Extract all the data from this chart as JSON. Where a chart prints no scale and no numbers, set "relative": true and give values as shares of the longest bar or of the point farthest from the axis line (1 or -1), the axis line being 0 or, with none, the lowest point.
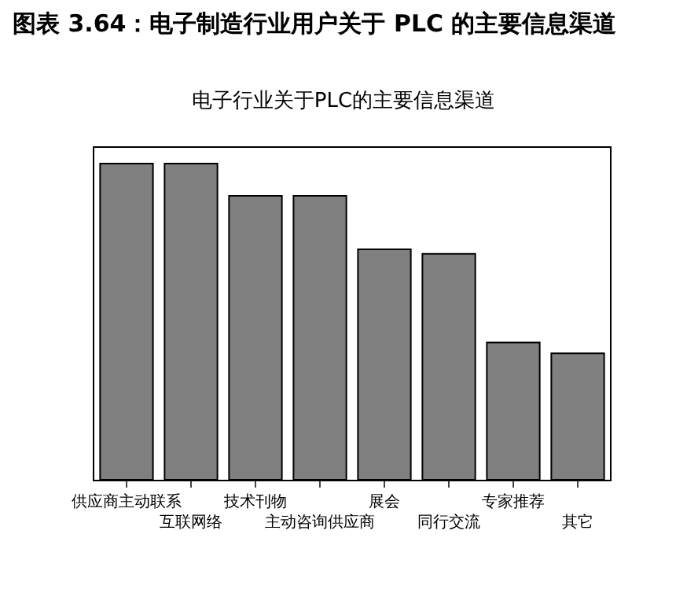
{
  "chart_data": {
    "type": "bar",
    "title": "图表 3.64：电子制造行业用户关于 PLC 的主要信息渠道",
    "subtitle": "电子行业关于PLC的主要信息渠道",
    "categories": [
      "供应商主动联系",
      "互联网络",
      "技术刊物",
      "主动咨询供应商",
      "展会",
      "同行交流",
      "专家推荐",
      "其它"
    ],
    "values": [
      1,
      1,
      0.898,
      0.898,
      0.729,
      0.715,
      0.434,
      0.4
    ],
    "color": "#808080",
    "relative": true,
    "grid": false,
    "legend": false
  }
}
